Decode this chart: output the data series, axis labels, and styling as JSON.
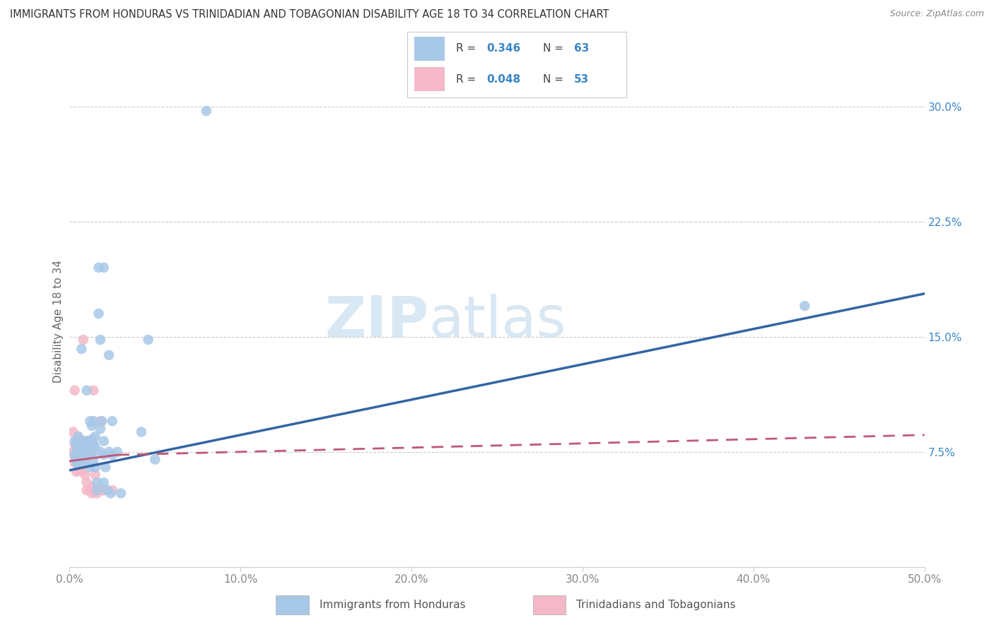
{
  "title": "IMMIGRANTS FROM HONDURAS VS TRINIDADIAN AND TOBAGONIAN DISABILITY AGE 18 TO 34 CORRELATION CHART",
  "source": "Source: ZipAtlas.com",
  "ylabel": "Disability Age 18 to 34",
  "xlim": [
    0.0,
    0.5
  ],
  "ylim": [
    0.0,
    0.32
  ],
  "xticks": [
    0.0,
    0.1,
    0.2,
    0.3,
    0.4,
    0.5
  ],
  "xtick_labels": [
    "0.0%",
    "10.0%",
    "20.0%",
    "30.0%",
    "40.0%",
    "50.0%"
  ],
  "ytick_labels_right": [
    "7.5%",
    "15.0%",
    "22.5%",
    "30.0%"
  ],
  "yticks_right": [
    0.075,
    0.15,
    0.225,
    0.3
  ],
  "watermark_ZIP": "ZIP",
  "watermark_atlas": "atlas",
  "legend_R1": "0.346",
  "legend_N1": "63",
  "legend_R2": "0.048",
  "legend_N2": "53",
  "blue_color": "#a8c8e8",
  "pink_color": "#f4b8c8",
  "blue_line_color": "#3465a4",
  "pink_line_color": "#c05878",
  "legend_text_color": "#3a86c8",
  "title_color": "#333333",
  "source_color": "#888888",
  "axis_label_color": "#666666",
  "tick_color": "#888888",
  "grid_color": "#cccccc",
  "blue_scatter": [
    [
      0.003,
      0.082
    ],
    [
      0.003,
      0.073
    ],
    [
      0.004,
      0.079
    ],
    [
      0.004,
      0.075
    ],
    [
      0.004,
      0.071
    ],
    [
      0.004,
      0.068
    ],
    [
      0.005,
      0.085
    ],
    [
      0.005,
      0.079
    ],
    [
      0.005,
      0.074
    ],
    [
      0.005,
      0.068
    ],
    [
      0.006,
      0.082
    ],
    [
      0.006,
      0.075
    ],
    [
      0.006,
      0.07
    ],
    [
      0.007,
      0.142
    ],
    [
      0.007,
      0.078
    ],
    [
      0.007,
      0.073
    ],
    [
      0.008,
      0.079
    ],
    [
      0.008,
      0.074
    ],
    [
      0.009,
      0.082
    ],
    [
      0.009,
      0.075
    ],
    [
      0.009,
      0.068
    ],
    [
      0.01,
      0.115
    ],
    [
      0.01,
      0.08
    ],
    [
      0.011,
      0.082
    ],
    [
      0.012,
      0.095
    ],
    [
      0.012,
      0.08
    ],
    [
      0.012,
      0.073
    ],
    [
      0.012,
      0.065
    ],
    [
      0.013,
      0.092
    ],
    [
      0.013,
      0.083
    ],
    [
      0.013,
      0.075
    ],
    [
      0.014,
      0.095
    ],
    [
      0.014,
      0.08
    ],
    [
      0.014,
      0.07
    ],
    [
      0.015,
      0.085
    ],
    [
      0.015,
      0.078
    ],
    [
      0.015,
      0.065
    ],
    [
      0.016,
      0.055
    ],
    [
      0.016,
      0.05
    ],
    [
      0.017,
      0.195
    ],
    [
      0.017,
      0.165
    ],
    [
      0.018,
      0.148
    ],
    [
      0.018,
      0.09
    ],
    [
      0.018,
      0.075
    ],
    [
      0.019,
      0.095
    ],
    [
      0.02,
      0.195
    ],
    [
      0.02,
      0.082
    ],
    [
      0.02,
      0.073
    ],
    [
      0.02,
      0.055
    ],
    [
      0.021,
      0.065
    ],
    [
      0.022,
      0.05
    ],
    [
      0.023,
      0.138
    ],
    [
      0.023,
      0.075
    ],
    [
      0.024,
      0.048
    ],
    [
      0.025,
      0.095
    ],
    [
      0.025,
      0.073
    ],
    [
      0.028,
      0.075
    ],
    [
      0.03,
      0.048
    ],
    [
      0.042,
      0.088
    ],
    [
      0.046,
      0.148
    ],
    [
      0.05,
      0.07
    ],
    [
      0.08,
      0.297
    ],
    [
      0.43,
      0.17
    ]
  ],
  "pink_scatter": [
    [
      0.002,
      0.088
    ],
    [
      0.002,
      0.075
    ],
    [
      0.003,
      0.115
    ],
    [
      0.003,
      0.08
    ],
    [
      0.003,
      0.072
    ],
    [
      0.003,
      0.068
    ],
    [
      0.004,
      0.082
    ],
    [
      0.004,
      0.078
    ],
    [
      0.004,
      0.073
    ],
    [
      0.004,
      0.068
    ],
    [
      0.004,
      0.062
    ],
    [
      0.005,
      0.085
    ],
    [
      0.005,
      0.078
    ],
    [
      0.005,
      0.073
    ],
    [
      0.005,
      0.068
    ],
    [
      0.005,
      0.063
    ],
    [
      0.006,
      0.082
    ],
    [
      0.006,
      0.075
    ],
    [
      0.006,
      0.07
    ],
    [
      0.006,
      0.075
    ],
    [
      0.006,
      0.063
    ],
    [
      0.007,
      0.078
    ],
    [
      0.007,
      0.073
    ],
    [
      0.007,
      0.063
    ],
    [
      0.008,
      0.078
    ],
    [
      0.008,
      0.073
    ],
    [
      0.008,
      0.082
    ],
    [
      0.008,
      0.075
    ],
    [
      0.008,
      0.068
    ],
    [
      0.008,
      0.148
    ],
    [
      0.009,
      0.075
    ],
    [
      0.009,
      0.08
    ],
    [
      0.009,
      0.06
    ],
    [
      0.01,
      0.05
    ],
    [
      0.01,
      0.055
    ],
    [
      0.01,
      0.082
    ],
    [
      0.01,
      0.078
    ],
    [
      0.011,
      0.082
    ],
    [
      0.011,
      0.075
    ],
    [
      0.011,
      0.072
    ],
    [
      0.012,
      0.08
    ],
    [
      0.012,
      0.05
    ],
    [
      0.013,
      0.075
    ],
    [
      0.013,
      0.048
    ],
    [
      0.014,
      0.052
    ],
    [
      0.014,
      0.115
    ],
    [
      0.015,
      0.06
    ],
    [
      0.016,
      0.05
    ],
    [
      0.016,
      0.048
    ],
    [
      0.018,
      0.095
    ],
    [
      0.019,
      0.05
    ],
    [
      0.02,
      0.05
    ],
    [
      0.025,
      0.05
    ]
  ],
  "blue_trendline": {
    "x_start": 0.0,
    "x_end": 0.5,
    "y_start": 0.063,
    "y_end": 0.178
  },
  "pink_trendline_solid": {
    "x_start": 0.0,
    "x_end": 0.028,
    "y_start": 0.069,
    "y_end": 0.073
  },
  "pink_trendline_dashed": {
    "x_start": 0.028,
    "x_end": 0.5,
    "y_start": 0.073,
    "y_end": 0.086
  }
}
